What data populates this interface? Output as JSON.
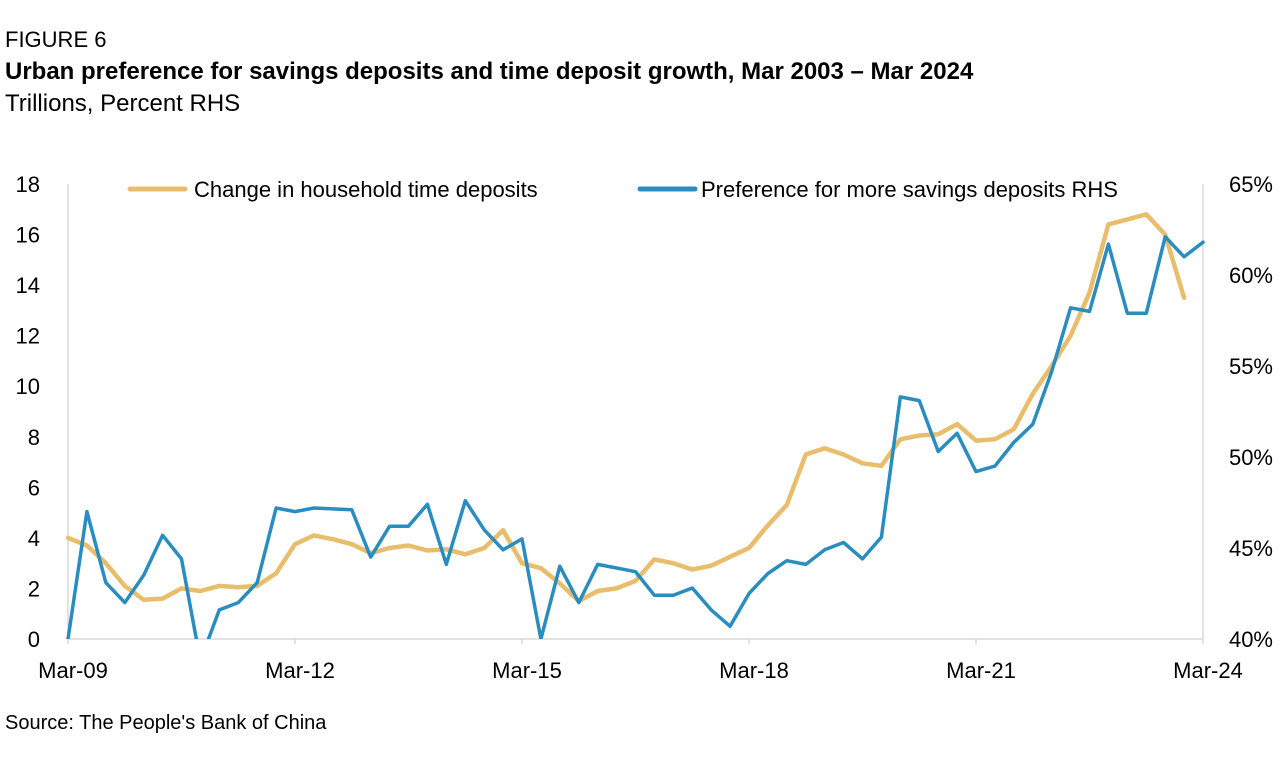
{
  "figure_label": "FIGURE 6",
  "title": "Urban preference for savings deposits and time deposit growth, Mar 2003 – Mar 2024",
  "subtitle": "Trillions, Percent RHS",
  "source": "Source: The People's Bank of China",
  "colors": {
    "time_deposits": "#E8BE6C",
    "preference": "#2A8DBF",
    "axis": "#d9d9d9"
  },
  "chart_data": {
    "type": "line",
    "x_ticks": [
      "Mar-09",
      "Mar-12",
      "Mar-15",
      "Mar-18",
      "Mar-21",
      "Mar-24"
    ],
    "y_left": {
      "ticks": [
        "0",
        "2",
        "4",
        "6",
        "8",
        "10",
        "12",
        "14",
        "16",
        "18"
      ],
      "min": 0,
      "max": 18
    },
    "y_right": {
      "ticks": [
        "40%",
        "45%",
        "50%",
        "55%",
        "60%",
        "65%"
      ],
      "min": 40,
      "max": 65
    },
    "grid": false,
    "legend_placement": "top",
    "series": [
      {
        "name": "Change in household time deposits",
        "axis": "left",
        "x": [
          2009.25,
          2009.5,
          2009.75,
          2010.0,
          2010.25,
          2010.5,
          2010.75,
          2011.0,
          2011.25,
          2011.5,
          2011.75,
          2012.0,
          2012.25,
          2012.5,
          2012.75,
          2013.0,
          2013.25,
          2013.5,
          2013.75,
          2014.0,
          2014.25,
          2014.5,
          2014.75,
          2015.0,
          2015.25,
          2015.5,
          2015.75,
          2016.0,
          2016.25,
          2016.5,
          2016.75,
          2017.0,
          2017.25,
          2017.5,
          2017.75,
          2018.0,
          2018.25,
          2018.5,
          2018.75,
          2019.0,
          2019.25,
          2019.5,
          2019.75,
          2020.0,
          2020.25,
          2020.5,
          2020.75,
          2021.0,
          2021.25,
          2021.5,
          2021.75,
          2022.0,
          2022.25,
          2022.5,
          2022.75,
          2023.0,
          2023.25,
          2023.5,
          2023.75,
          2024.0,
          2024.25
        ],
        "values": [
          4.0,
          3.7,
          3.0,
          2.1,
          1.55,
          1.6,
          2.0,
          1.9,
          2.1,
          2.05,
          2.1,
          2.6,
          3.75,
          4.1,
          3.95,
          3.75,
          3.4,
          3.6,
          3.7,
          3.5,
          3.55,
          3.35,
          3.6,
          4.3,
          3.0,
          2.8,
          2.2,
          1.5,
          1.9,
          2.0,
          2.3,
          3.15,
          3.0,
          2.75,
          2.9,
          3.25,
          3.6,
          4.5,
          5.3,
          7.3,
          7.55,
          7.3,
          6.95,
          6.85,
          7.9,
          8.05,
          8.1,
          8.5,
          7.85,
          7.9,
          8.3,
          9.7,
          10.8,
          12.0,
          13.7,
          16.4,
          16.6,
          16.8,
          16.0,
          13.5,
          null
        ]
      },
      {
        "name": "Preference for more savings deposits RHS",
        "axis": "right",
        "x": [
          2009.25,
          2009.5,
          2009.75,
          2010.0,
          2010.25,
          2010.5,
          2010.75,
          2011.0,
          2011.25,
          2011.5,
          2011.75,
          2012.0,
          2012.25,
          2012.5,
          2012.75,
          2013.0,
          2013.25,
          2013.5,
          2013.75,
          2014.0,
          2014.25,
          2014.5,
          2014.75,
          2015.0,
          2015.25,
          2015.5,
          2015.75,
          2016.0,
          2016.25,
          2016.5,
          2016.75,
          2017.0,
          2017.25,
          2017.5,
          2017.75,
          2018.0,
          2018.25,
          2018.5,
          2018.75,
          2019.0,
          2019.25,
          2019.5,
          2019.75,
          2020.0,
          2020.25,
          2020.5,
          2020.75,
          2021.0,
          2021.25,
          2021.5,
          2021.75,
          2022.0,
          2022.25,
          2022.5,
          2022.75,
          2023.0,
          2023.25,
          2023.5,
          2023.75,
          2024.0,
          2024.25
        ],
        "values": [
          40.0,
          47.0,
          43.1,
          42.0,
          43.5,
          45.7,
          44.4,
          38.8,
          41.6,
          42.0,
          43.1,
          47.2,
          47.0,
          47.2,
          47.15,
          47.1,
          44.5,
          46.2,
          46.2,
          47.4,
          44.1,
          47.6,
          46.0,
          44.9,
          45.5,
          40.0,
          44.0,
          42.0,
          44.1,
          43.9,
          43.7,
          42.4,
          42.4,
          42.8,
          41.6,
          40.7,
          42.5,
          43.6,
          44.3,
          44.1,
          44.9,
          45.3,
          44.4,
          45.6,
          53.3,
          53.1,
          50.3,
          51.3,
          49.2,
          49.5,
          50.8,
          51.8,
          54.7,
          58.2,
          58.0,
          61.7,
          57.9,
          57.9,
          62.1,
          61.0,
          61.8
        ]
      }
    ]
  }
}
